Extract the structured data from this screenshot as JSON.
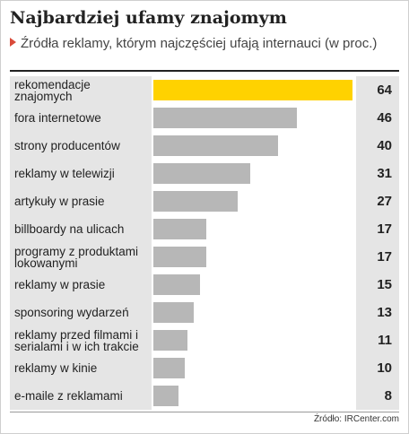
{
  "title": "Najbardziej ufamy znajomym",
  "subtitle": "Źródła reklamy, którym najczęściej ufają internauci (w proc.)",
  "source": "Źródło: IRCenter.com",
  "colors": {
    "highlight": "#ffd200",
    "bar": "#b7b7b7",
    "row_background": "#e5e5e5"
  },
  "chart_data": {
    "type": "bar",
    "orientation": "horizontal",
    "title": "Najbardziej ufamy znajomym",
    "subtitle": "Źródła reklamy, którym najczęściej ufają internauci (w proc.)",
    "categories": [
      "rekomendacje znajomych",
      "fora internetowe",
      "strony producentów",
      "reklamy w telewizji",
      "artykuły w prasie",
      "billboardy na ulicach",
      "programy z produktami lokowanymi",
      "reklamy w prasie",
      "sponsoring wydarzeń",
      "reklamy przed filmami i serialami i w ich trakcie",
      "reklamy w kinie",
      "e-maile z reklamami"
    ],
    "values": [
      64,
      46,
      40,
      31,
      27,
      17,
      17,
      15,
      13,
      11,
      10,
      8
    ],
    "highlight_index": 0,
    "xlim": [
      0,
      64
    ],
    "grid": false,
    "legend": "none"
  }
}
